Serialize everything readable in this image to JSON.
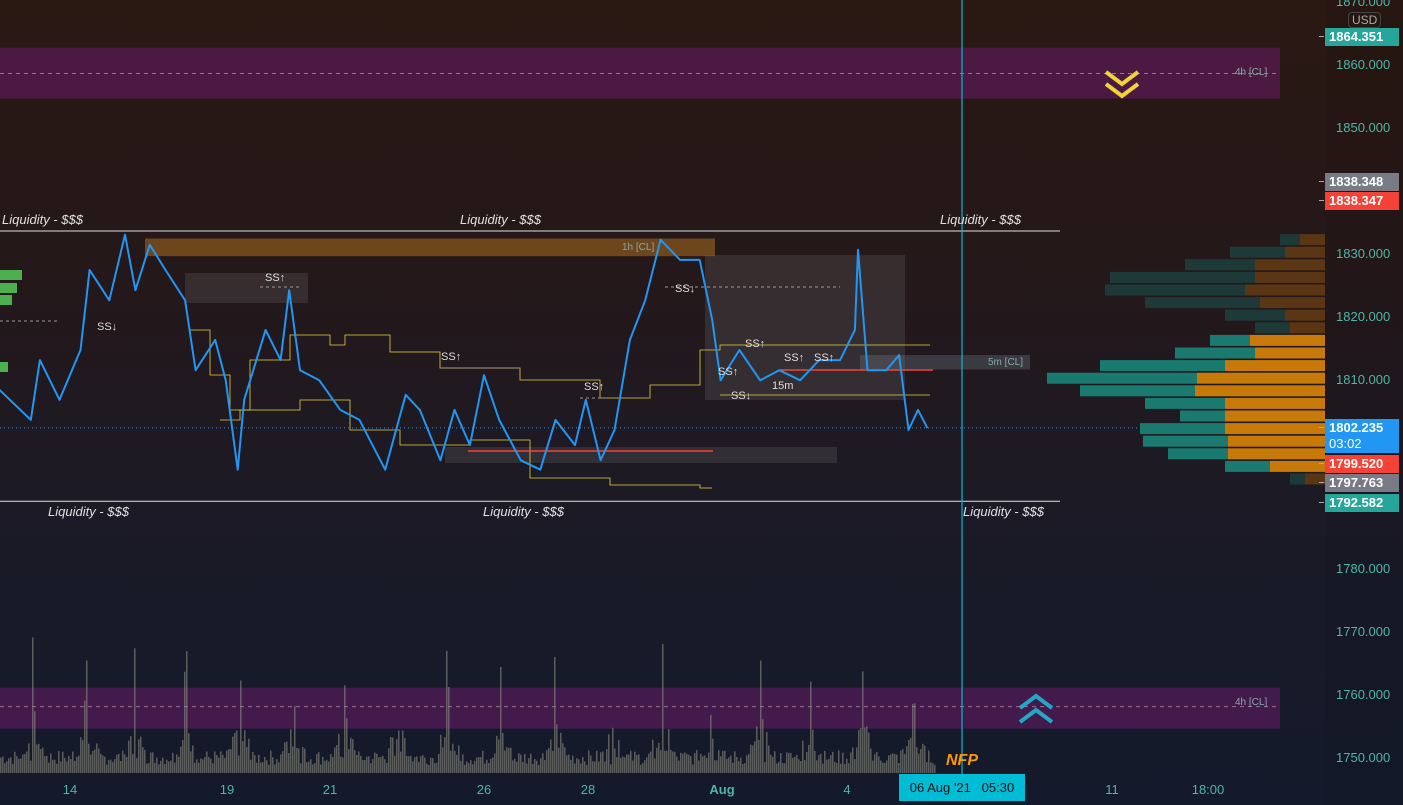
{
  "chart_data": {
    "type": "line",
    "currency": "USD",
    "ylim": [
      1745,
      1870
    ],
    "y_ticks": [
      "1870.000",
      "1860.000",
      "1850.000",
      "1830.000",
      "1820.000",
      "1810.000",
      "1780.000",
      "1770.000",
      "1760.000",
      "1750.000"
    ],
    "x_ticks": [
      {
        "label": "14",
        "date": "2021-07-14"
      },
      {
        "label": "19",
        "date": "2021-07-19"
      },
      {
        "label": "21",
        "date": "2021-07-21"
      },
      {
        "label": "26",
        "date": "2021-07-26"
      },
      {
        "label": "28",
        "date": "2021-07-28"
      },
      {
        "label": "Aug",
        "date": "2021-08-01"
      },
      {
        "label": "4",
        "date": "2021-08-04"
      },
      {
        "label": "11",
        "date": "2021-08-11"
      },
      {
        "label": "18:00",
        "date": "2021-08-12 18:00"
      }
    ],
    "series": [
      {
        "color": "#2196f3",
        "points": [
          [
            "2021-07-11 18:00",
            1808.3
          ],
          [
            "2021-07-12 18:00",
            1803.5
          ],
          [
            "2021-07-13 01:00",
            1813.0
          ],
          [
            "2021-07-13 16:00",
            1806.7
          ],
          [
            "2021-07-14 08:00",
            1814.6
          ],
          [
            "2021-07-14 15:00",
            1827.3
          ],
          [
            "2021-07-15 06:00",
            1822.5
          ],
          [
            "2021-07-15 18:00",
            1832.9
          ],
          [
            "2021-07-16 02:00",
            1824.1
          ],
          [
            "2021-07-16 13:00",
            1831.3
          ],
          [
            "2021-07-17 01:00",
            1827.3
          ],
          [
            "2021-07-17 16:00",
            1822.5
          ],
          [
            "2021-07-18 00:00",
            1811.4
          ],
          [
            "2021-07-18 15:00",
            1816.2
          ],
          [
            "2021-07-18 23:00",
            1809.8
          ],
          [
            "2021-07-19 05:00",
            1795.6
          ],
          [
            "2021-07-19 08:00",
            1806.7
          ],
          [
            "2021-07-19 18:00",
            1817.8
          ],
          [
            "2021-07-20 01:00",
            1813.0
          ],
          [
            "2021-07-20 05:00",
            1824.1
          ],
          [
            "2021-07-20 10:00",
            1811.4
          ],
          [
            "2021-07-20 19:00",
            1809.8
          ],
          [
            "2021-07-21 08:00",
            1805.1
          ],
          [
            "2021-07-21 23:00",
            1803.5
          ],
          [
            "2021-07-22 19:00",
            1795.6
          ],
          [
            "2021-07-23 11:00",
            1807.5
          ],
          [
            "2021-07-23 22:00",
            1805.1
          ],
          [
            "2021-07-24 14:00",
            1797.1
          ],
          [
            "2021-07-25 01:00",
            1805.1
          ],
          [
            "2021-07-25 13:00",
            1799.5
          ],
          [
            "2021-07-26 00:00",
            1810.6
          ],
          [
            "2021-07-26 07:00",
            1803.5
          ],
          [
            "2021-07-26 17:00",
            1797.1
          ],
          [
            "2021-07-27 02:00",
            1795.6
          ],
          [
            "2021-07-27 09:00",
            1803.5
          ],
          [
            "2021-07-27 18:00",
            1799.5
          ],
          [
            "2021-07-27 23:00",
            1806.7
          ],
          [
            "2021-07-28 09:00",
            1797.1
          ],
          [
            "2021-07-28 19:00",
            1801.9
          ],
          [
            "2021-07-29 06:00",
            1816.2
          ],
          [
            "2021-07-29 17:00",
            1822.5
          ],
          [
            "2021-07-30 04:00",
            1832.1
          ],
          [
            "2021-07-30 18:00",
            1828.9
          ],
          [
            "2021-07-31 08:00",
            1828.9
          ],
          [
            "2021-07-31 17:00",
            1819.4
          ],
          [
            "2021-07-31 23:00",
            1809.8
          ],
          [
            "2021-08-01 10:00",
            1814.6
          ],
          [
            "2021-08-01 22:00",
            1809.8
          ],
          [
            "2021-08-02 09:00",
            1811.4
          ],
          [
            "2021-08-02 21:00",
            1809.8
          ],
          [
            "2021-08-03 08:00",
            1813.0
          ],
          [
            "2021-08-03 20:00",
            1813.0
          ],
          [
            "2021-08-04 05:00",
            1817.8
          ],
          [
            "2021-08-04 07:00",
            1830.5
          ],
          [
            "2021-08-04 13:00",
            1811.4
          ],
          [
            "2021-08-05 01:00",
            1811.4
          ],
          [
            "2021-08-05 09:00",
            1813.8
          ],
          [
            "2021-08-05 15:00",
            1801.9
          ],
          [
            "2021-08-05 21:00",
            1805.1
          ],
          [
            "2021-08-06 03:00",
            1802.2
          ]
        ]
      }
    ],
    "price_tags": [
      {
        "value": "1864.351",
        "color": "#26a69a"
      },
      {
        "value": "1838.348",
        "color": "#787b86"
      },
      {
        "value": "1838.347",
        "color": "#f44336"
      },
      {
        "value": "1802.235",
        "sub": "03:02",
        "color": "#2196f3"
      },
      {
        "value": "1799.520",
        "color": "#f44336"
      },
      {
        "value": "1797.763",
        "color": "#787b86"
      },
      {
        "value": "1792.582",
        "color": "#26a69a"
      }
    ],
    "liquidity_levels": [
      {
        "price": 1833.5,
        "labels": [
          "Liquidity - $$$",
          "Liquidity - $$$",
          "Liquidity - $$$"
        ]
      },
      {
        "price": 1790.6,
        "labels": [
          "Liquidity - $$$",
          "Liquidity - $$$",
          "Liquidity - $$$"
        ]
      }
    ],
    "zones": [
      {
        "label": "4h [CL]",
        "from": 1854.5,
        "to": 1862.6,
        "color": "#6a1b6a"
      },
      {
        "label": "4h [CL]",
        "from": 1754.5,
        "to": 1761.0,
        "color": "#6a1b6a"
      },
      {
        "label": "1h [CL]",
        "from": 1829.5,
        "to": 1832.3,
        "color": "#b8731f"
      },
      {
        "label": "5m [CL]",
        "from": 1811.5,
        "to": 1813.8,
        "color": "#555a66"
      }
    ],
    "annotations": [
      "SS↓",
      "SS↑",
      "SS↑",
      "SS↓",
      "SS↑",
      "SS↑",
      "SS↑",
      "SS↓",
      "SS↑",
      "SS↑",
      "15m"
    ],
    "volume_profile": [
      {
        "price": 1832,
        "down": 20,
        "up": 25
      },
      {
        "price": 1830,
        "down": 55,
        "up": 40
      },
      {
        "price": 1828,
        "down": 70,
        "up": 70
      },
      {
        "price": 1826,
        "down": 145,
        "up": 70
      },
      {
        "price": 1824,
        "down": 140,
        "up": 80
      },
      {
        "price": 1822,
        "down": 115,
        "up": 65
      },
      {
        "price": 1820,
        "down": 60,
        "up": 40
      },
      {
        "price": 1818,
        "down": 35,
        "up": 35
      },
      {
        "price": 1816,
        "down": 40,
        "up": 75
      },
      {
        "price": 1814,
        "down": 80,
        "up": 70
      },
      {
        "price": 1812,
        "down": 125,
        "up": 100
      },
      {
        "price": 1810,
        "down": 150,
        "up": 128
      },
      {
        "price": 1808,
        "down": 115,
        "up": 130
      },
      {
        "price": 1806,
        "down": 80,
        "up": 100
      },
      {
        "price": 1804,
        "down": 45,
        "up": 100
      },
      {
        "price": 1802,
        "down": 85,
        "up": 100
      },
      {
        "price": 1800,
        "down": 85,
        "up": 97
      },
      {
        "price": 1798,
        "down": 60,
        "up": 97
      },
      {
        "price": 1796,
        "down": 45,
        "up": 55
      },
      {
        "price": 1794,
        "down": 15,
        "up": 20
      }
    ],
    "event": {
      "label": "NFP",
      "date": "06 Aug '21",
      "time": "05:30"
    },
    "grid": false
  }
}
